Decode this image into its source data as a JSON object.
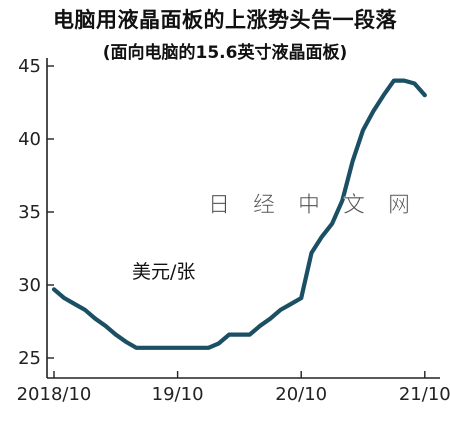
{
  "title": "电脑用液晶面板的上涨势头告一段落",
  "subtitle": "(面向电脑的15.6英寸液晶面板)",
  "unit_label": "美元/张",
  "watermark": "日 经 中 文 网",
  "colors": {
    "line": "#1b4f63",
    "axis": "#222222",
    "text": "#111111"
  },
  "chart_data": {
    "type": "line",
    "title": "电脑用液晶面板的上涨势头告一段落",
    "subtitle": "(面向电脑的15.6英寸液晶面板)",
    "ylabel": "美元/张",
    "ylim": [
      25,
      46
    ],
    "y_ticks": [
      25,
      30,
      35,
      40,
      45
    ],
    "xlim": [
      0,
      46
    ],
    "x_ticks": [
      {
        "value": 0,
        "label": "2018/10"
      },
      {
        "value": 12,
        "label": "19/10"
      },
      {
        "value": 24,
        "label": "20/10"
      },
      {
        "value": 36,
        "label": "21/10"
      }
    ],
    "grid": false,
    "legend": "none",
    "series": [
      {
        "x": [
          0,
          1,
          2,
          3,
          4,
          5,
          6,
          7,
          8,
          9,
          10,
          11,
          12,
          13,
          14,
          15,
          16,
          17,
          18,
          19,
          20,
          21,
          22,
          23,
          24,
          25,
          26,
          27,
          28,
          29,
          30,
          31,
          32,
          33,
          34,
          35,
          36
        ],
        "values": [
          29.7,
          29.1,
          28.7,
          28.3,
          27.7,
          27.2,
          26.6,
          26.1,
          25.7,
          25.7,
          25.7,
          25.7,
          25.7,
          25.7,
          25.7,
          25.7,
          26.0,
          26.6,
          26.6,
          26.6,
          27.2,
          27.7,
          28.3,
          28.7,
          29.1,
          32.2,
          33.3,
          34.2,
          35.8,
          38.5,
          40.6,
          41.9,
          43.0,
          44.0,
          44.0,
          43.8,
          43.0
        ]
      }
    ]
  }
}
